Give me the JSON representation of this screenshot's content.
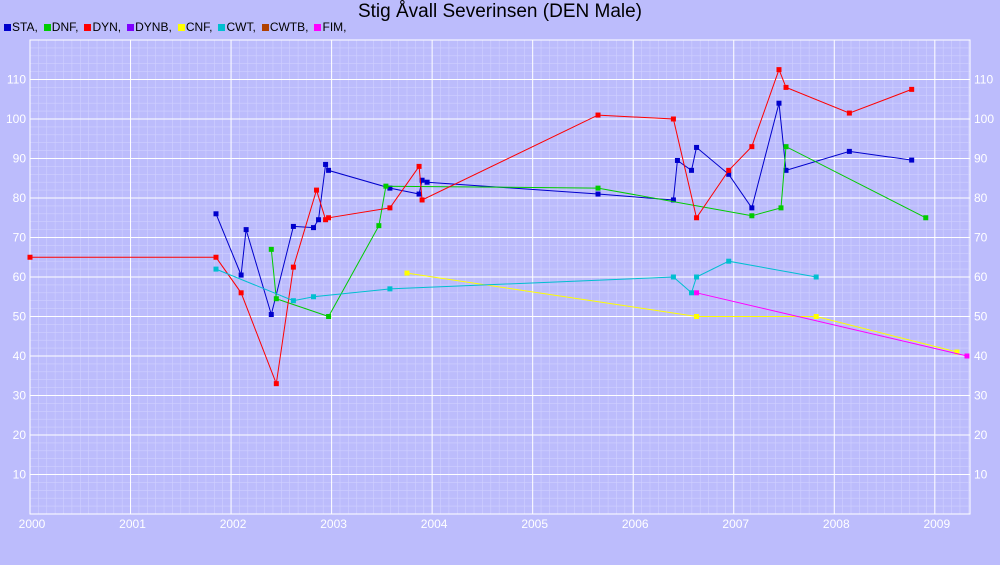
{
  "chart_data": {
    "type": "line",
    "title": "Stig Åvall Severinsen (DEN Male)",
    "xlabel": "",
    "ylabel": "",
    "xlim": [
      2000.0,
      2009.35
    ],
    "ylim": [
      0,
      120
    ],
    "x_ticks": [
      "2000",
      "2001",
      "2002",
      "2003",
      "2004",
      "2005",
      "2006",
      "2007",
      "2008",
      "2009"
    ],
    "y_ticks": [
      "10",
      "20",
      "30",
      "40",
      "50",
      "60",
      "70",
      "80",
      "90",
      "100",
      "110"
    ],
    "grid": true,
    "legend_position": "top-left",
    "series": [
      {
        "name": "STA,",
        "color": "#0000cc",
        "x": [
          2001.85,
          2002.1,
          2002.15,
          2002.4,
          2002.62,
          2002.82,
          2002.87,
          2002.94,
          2002.97,
          2003.58,
          2003.87,
          2003.9,
          2003.95,
          2005.65,
          2006.4,
          2006.44,
          2006.58,
          2006.63,
          2006.95,
          2007.18,
          2007.45,
          2007.52,
          2008.15,
          2008.77
        ],
        "y": [
          76,
          60.5,
          72,
          50.5,
          72.8,
          72.5,
          74.5,
          88.5,
          87,
          82.5,
          81,
          84.5,
          84,
          81,
          79.5,
          89.5,
          87,
          92.8,
          86,
          77.5,
          104,
          87,
          91.8,
          89.6
        ]
      },
      {
        "name": "DNF,",
        "color": "#00cc00",
        "x": [
          2002.4,
          2002.45,
          2002.97,
          2003.47,
          2003.54,
          2005.65,
          2007.18,
          2007.47,
          2007.52,
          2008.91
        ],
        "y": [
          67,
          54.5,
          50,
          73,
          83,
          82.5,
          75.5,
          77.5,
          93,
          75
        ]
      },
      {
        "name": "DYN,",
        "color": "#ff0000",
        "x": [
          2000.0,
          2001.85,
          2002.1,
          2002.45,
          2002.62,
          2002.85,
          2002.94,
          2002.97,
          2003.58,
          2003.87,
          2003.9,
          2005.65,
          2006.4,
          2006.63,
          2006.95,
          2007.18,
          2007.45,
          2007.52,
          2008.15,
          2008.77
        ],
        "y": [
          65,
          65,
          56,
          33,
          62.5,
          82,
          74.5,
          75,
          77.5,
          88,
          79.5,
          101,
          100,
          75,
          87,
          93,
          112.5,
          108,
          101.5,
          107.5
        ]
      },
      {
        "name": "DYNB,",
        "color": "#7f00ff",
        "x": [],
        "y": []
      },
      {
        "name": "CNF,",
        "color": "#ffff00",
        "x": [
          2003.75,
          2006.63,
          2007.82,
          2009.22
        ],
        "y": [
          61,
          50,
          50,
          41
        ]
      },
      {
        "name": "CWT,",
        "color": "#00bfd0",
        "x": [
          2001.85,
          2002.62,
          2002.82,
          2003.58,
          2006.4,
          2006.58,
          2006.63,
          2006.95,
          2007.82
        ],
        "y": [
          62,
          54,
          55,
          57,
          60,
          56,
          60,
          64,
          60
        ]
      },
      {
        "name": "CWTB,",
        "color": "#b04000",
        "x": [],
        "y": []
      },
      {
        "name": "FIM,",
        "color": "#ff00ff",
        "x": [
          2006.63,
          2009.32
        ],
        "y": [
          56,
          40
        ]
      }
    ]
  }
}
